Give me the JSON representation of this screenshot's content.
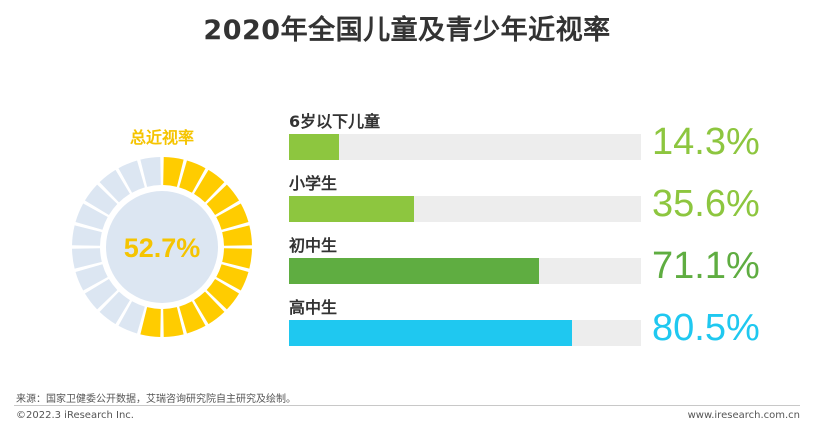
{
  "title": "2020年全国儿童及青少年近视率",
  "chart_data": [
    {
      "type": "pie",
      "title": "总近视率",
      "center_label": "52.7%",
      "value": 52.7,
      "unit": "%",
      "colors": {
        "filled": "#FFCC00",
        "remaining": "#DCE6F2",
        "label": "#F5C400"
      }
    },
    {
      "type": "bar",
      "orientation": "horizontal",
      "categories": [
        "6岁以下儿童",
        "小学生",
        "初中生",
        "高中生"
      ],
      "values": [
        14.3,
        35.6,
        71.1,
        80.5
      ],
      "value_labels": [
        "14.3%",
        "35.6%",
        "71.1%",
        "80.5%"
      ],
      "xlim": [
        0,
        100
      ],
      "colors": [
        "#8DC63F",
        "#8DC63F",
        "#5FAD41",
        "#1FC8F0"
      ],
      "label_colors": [
        "#8DC63F",
        "#8DC63F",
        "#5FAD41",
        "#1FC8F0"
      ],
      "track_color": "#EDEDED"
    }
  ],
  "footer": {
    "source": "来源：国家卫健委公开数据，艾瑞咨询研究院自主研究及绘制。",
    "copyright": "©2022.3 iResearch Inc.",
    "website": "www.iresearch.com.cn"
  }
}
